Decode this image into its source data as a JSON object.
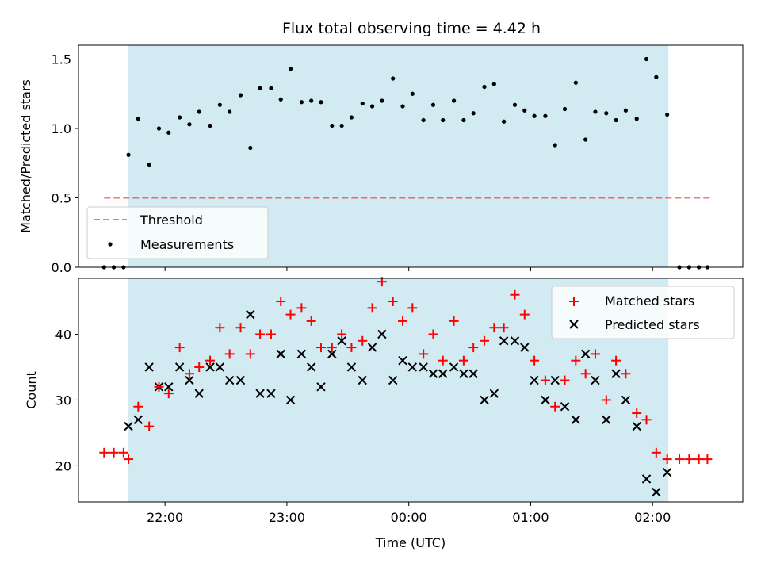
{
  "title": "Flux total observing time = 4.42 h",
  "colors": {
    "shade": "#add8e6",
    "threshold": "#ff0000",
    "matched": "#ff0000",
    "predicted": "#000000",
    "measurement": "#000000"
  },
  "chart_data": [
    {
      "type": "scatter",
      "ylabel": "Matched/Predicted stars",
      "xlim": [
        21.29,
        2.74
      ],
      "ylim": [
        0,
        1.6
      ],
      "x_tick_labels": [
        "22:00",
        "23:00",
        "00:00",
        "01:00",
        "02:00"
      ],
      "y_ticks": [
        "0.0",
        "0.5",
        "1.0",
        "1.5"
      ],
      "shaded_interval": [
        21.7,
        2.13
      ],
      "threshold": {
        "name": "Threshold",
        "value": 0.5,
        "x_range": [
          21.5,
          2.47
        ]
      },
      "legend": {
        "placement": "lower-left",
        "entries": [
          "Threshold",
          "Measurements"
        ]
      },
      "measurements": {
        "name": "Measurements",
        "x": [
          21.5,
          21.58,
          21.66,
          21.7,
          21.78,
          21.87,
          21.95,
          22.03,
          22.12,
          22.2,
          22.28,
          22.37,
          22.45,
          22.53,
          22.62,
          22.7,
          22.78,
          22.87,
          22.95,
          23.03,
          23.12,
          23.2,
          23.28,
          23.37,
          23.45,
          23.53,
          23.62,
          23.7,
          23.78,
          23.87,
          23.95,
          0.03,
          0.12,
          0.2,
          0.28,
          0.37,
          0.45,
          0.53,
          0.62,
          0.7,
          0.78,
          0.87,
          0.95,
          1.03,
          1.12,
          1.2,
          1.28,
          1.37,
          1.45,
          1.53,
          1.62,
          1.7,
          1.78,
          1.87,
          1.95,
          2.03,
          2.12,
          2.22,
          2.3,
          2.38,
          2.45
        ],
        "y": [
          0,
          0,
          0,
          0.81,
          1.07,
          0.74,
          1.0,
          0.97,
          1.08,
          1.03,
          1.12,
          1.02,
          1.17,
          1.12,
          1.24,
          0.86,
          1.29,
          1.29,
          1.21,
          1.43,
          1.19,
          1.2,
          1.19,
          1.02,
          1.02,
          1.08,
          1.18,
          1.16,
          1.2,
          1.36,
          1.16,
          1.25,
          1.06,
          1.17,
          1.06,
          1.2,
          1.06,
          1.11,
          1.3,
          1.32,
          1.05,
          1.17,
          1.13,
          1.09,
          1.09,
          0.88,
          1.14,
          1.33,
          0.92,
          1.12,
          1.11,
          1.06,
          1.13,
          1.07,
          1.5,
          1.37,
          1.1,
          0,
          0,
          0,
          0
        ]
      }
    },
    {
      "type": "scatter",
      "xlabel": "Time (UTC)",
      "ylabel": "Count",
      "xlim": [
        21.29,
        2.74
      ],
      "ylim": [
        14.5,
        48.5
      ],
      "x_tick_labels": [
        "22:00",
        "23:00",
        "00:00",
        "01:00",
        "02:00"
      ],
      "y_ticks": [
        "20",
        "30",
        "40"
      ],
      "shaded_interval": [
        21.7,
        2.13
      ],
      "legend": {
        "placement": "upper-right",
        "entries": [
          "Matched stars",
          "Predicted stars"
        ]
      },
      "series": [
        {
          "name": "Matched stars",
          "x": [
            21.5,
            21.58,
            21.66,
            21.7,
            21.78,
            21.87,
            21.95,
            22.03,
            22.12,
            22.2,
            22.28,
            22.37,
            22.45,
            22.53,
            22.62,
            22.7,
            22.78,
            22.87,
            22.95,
            23.03,
            23.12,
            23.2,
            23.28,
            23.37,
            23.45,
            23.53,
            23.62,
            23.7,
            23.78,
            23.87,
            23.95,
            0.03,
            0.12,
            0.2,
            0.28,
            0.37,
            0.45,
            0.53,
            0.62,
            0.7,
            0.78,
            0.87,
            0.95,
            1.03,
            1.12,
            1.2,
            1.28,
            1.37,
            1.45,
            1.53,
            1.62,
            1.7,
            1.78,
            1.87,
            1.95,
            2.03,
            2.12,
            2.22,
            2.3,
            2.38,
            2.45
          ],
          "y": [
            22,
            22,
            22,
            21,
            29,
            26,
            32,
            31,
            38,
            34,
            35,
            36,
            41,
            37,
            41,
            37,
            40,
            40,
            45,
            43,
            44,
            42,
            38,
            38,
            40,
            38,
            39,
            44,
            48,
            45,
            42,
            44,
            37,
            40,
            36,
            42,
            36,
            38,
            39,
            41,
            41,
            46,
            43,
            36,
            33,
            29,
            33,
            36,
            34,
            37,
            30,
            36,
            34,
            28,
            27,
            22,
            21,
            21,
            21,
            21,
            21
          ]
        },
        {
          "name": "Predicted stars",
          "x": [
            21.7,
            21.78,
            21.87,
            21.95,
            22.03,
            22.12,
            22.2,
            22.28,
            22.37,
            22.45,
            22.53,
            22.62,
            22.7,
            22.78,
            22.87,
            22.95,
            23.03,
            23.12,
            23.2,
            23.28,
            23.37,
            23.45,
            23.53,
            23.62,
            23.7,
            23.78,
            23.87,
            23.95,
            0.03,
            0.12,
            0.2,
            0.28,
            0.37,
            0.45,
            0.53,
            0.62,
            0.7,
            0.78,
            0.87,
            0.95,
            1.03,
            1.12,
            1.2,
            1.28,
            1.37,
            1.45,
            1.53,
            1.62,
            1.7,
            1.78,
            1.87,
            1.95,
            2.03,
            2.12
          ],
          "y": [
            26,
            27,
            35,
            32,
            32,
            35,
            33,
            31,
            35,
            35,
            33,
            33,
            43,
            31,
            31,
            37,
            30,
            37,
            35,
            32,
            37,
            39,
            35,
            33,
            38,
            40,
            33,
            36,
            35,
            35,
            34,
            34,
            35,
            34,
            34,
            30,
            31,
            39,
            39,
            38,
            33,
            30,
            33,
            29,
            27,
            37,
            33,
            27,
            34,
            30,
            26,
            18,
            16,
            19
          ]
        }
      ]
    }
  ]
}
